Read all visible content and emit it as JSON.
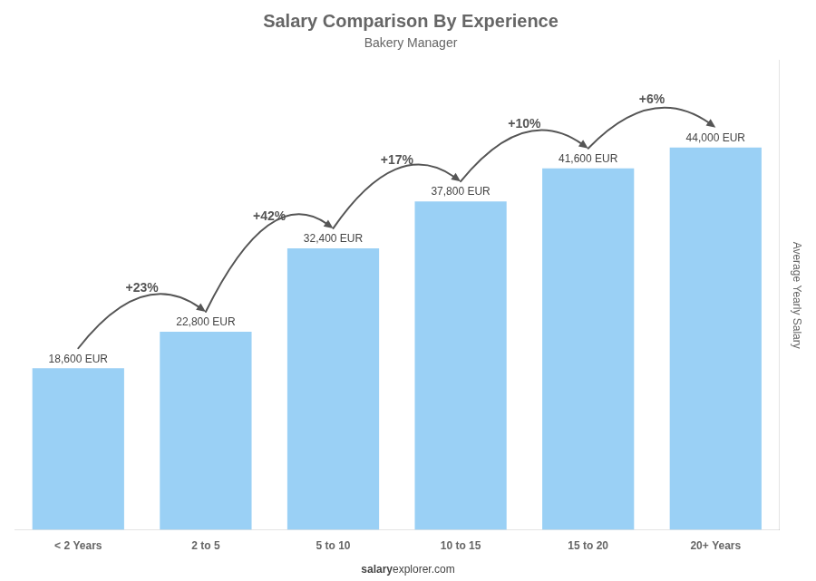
{
  "chart_data": {
    "type": "bar",
    "title": "Salary Comparison By Experience",
    "subtitle": "Bakery Manager",
    "categories": [
      "< 2 Years",
      "2 to 5",
      "5 to 10",
      "10 to 15",
      "15 to 20",
      "20+ Years"
    ],
    "values": [
      18600,
      22800,
      32400,
      37800,
      41600,
      44000
    ],
    "value_labels": [
      "18,600 EUR",
      "22,800 EUR",
      "32,400 EUR",
      "37,800 EUR",
      "41,600 EUR",
      "44,000 EUR"
    ],
    "data_labels": true,
    "y_label": "Average Yearly Salary",
    "ylim": [
      0,
      54000
    ],
    "grid": false,
    "tick_labels": "x",
    "annotations": [
      {
        "text": "+23%",
        "from": "< 2 Years",
        "to": "2 to 5"
      },
      {
        "text": "+42%",
        "from": "2 to 5",
        "to": "5 to 10"
      },
      {
        "text": "+17%",
        "from": "5 to 10",
        "to": "10 to 15"
      },
      {
        "text": "+10%",
        "from": "10 to 15",
        "to": "15 to 20"
      },
      {
        "text": "+6%",
        "from": "15 to 20",
        "to": "20+ Years"
      }
    ],
    "footer": [
      "salary",
      "explorer.com"
    ]
  }
}
